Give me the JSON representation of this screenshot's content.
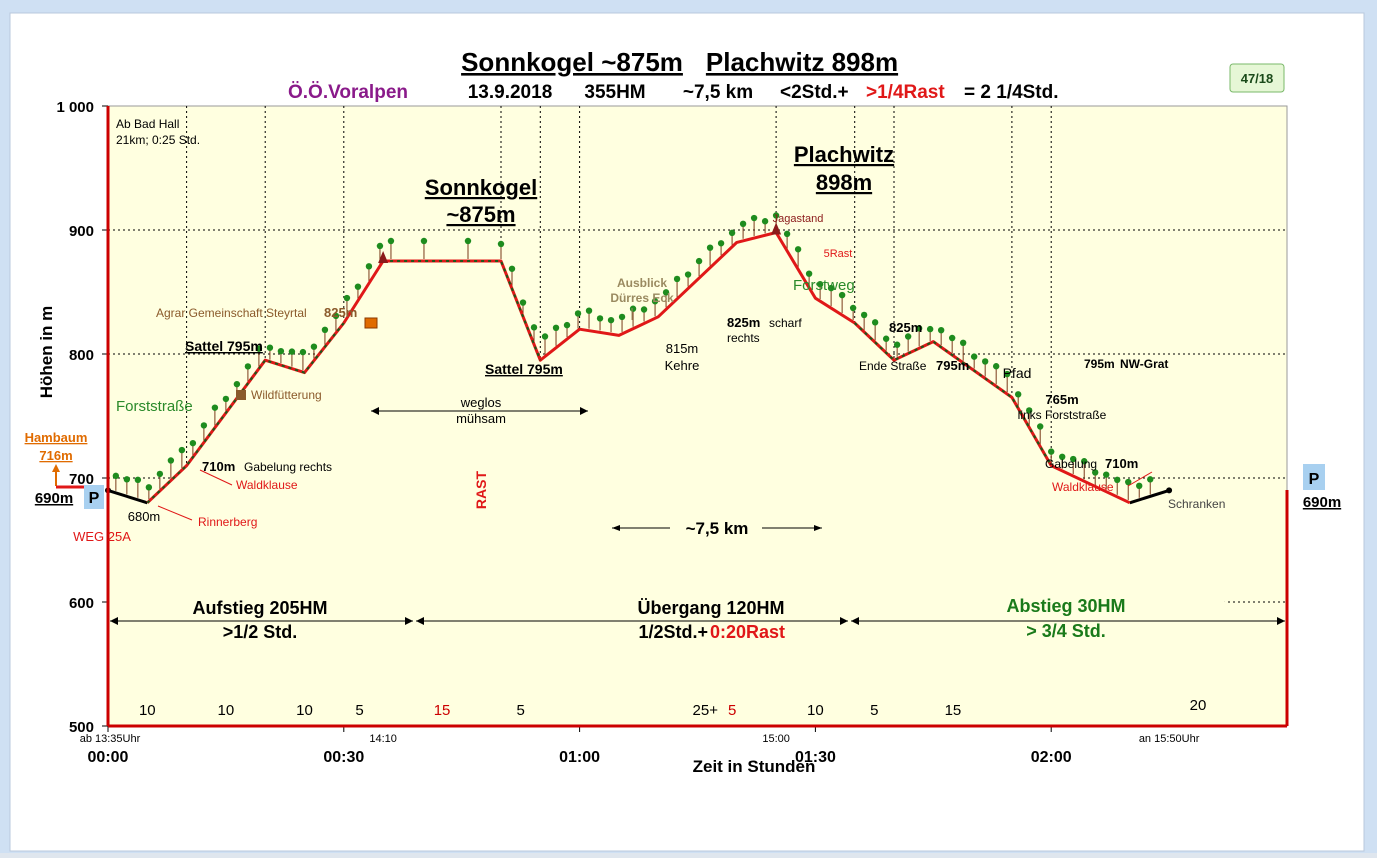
{
  "header": {
    "title_a": "Sonnkogel ~875m",
    "title_b": "Plachwitz 898m",
    "region": "Ö.Ö.Voralpen",
    "date": "13.9.2018",
    "hm": "355HM",
    "distance": "~7,5 km",
    "time_a": "<2Std.+",
    "time_rest": ">1/4Rast",
    "time_total": "= 2 1/4Std.",
    "badge": "47/18"
  },
  "chart_data": {
    "type": "area",
    "ylabel": "Höhen in m",
    "xlabel": "Zeit in Stunden",
    "ylim": [
      500,
      1000
    ],
    "xlim_min": [
      0,
      150
    ],
    "yticks": [
      "500",
      "600",
      "700",
      "800",
      "900",
      "1 000"
    ],
    "xticks": [
      {
        "min": 0,
        "label": "00:00"
      },
      {
        "min": 30,
        "label": "00:30"
      },
      {
        "min": 60,
        "label": "01:00"
      },
      {
        "min": 90,
        "label": "01:30"
      },
      {
        "min": 120,
        "label": "02:00"
      }
    ],
    "clock_labels": [
      {
        "min": 0,
        "label": "ab 13:35Uhr"
      },
      {
        "min": 35,
        "label": "14:10"
      },
      {
        "min": 85,
        "label": "15:00"
      },
      {
        "min": 135,
        "label": "an 15:50Uhr"
      }
    ],
    "grid": "dotted",
    "profile": [
      {
        "min": 0,
        "m": 690
      },
      {
        "min": 5,
        "m": 680
      },
      {
        "min": 10,
        "m": 710
      },
      {
        "min": 20,
        "m": 795
      },
      {
        "min": 25,
        "m": 785
      },
      {
        "min": 30,
        "m": 825
      },
      {
        "min": 35,
        "m": 875
      },
      {
        "min": 50,
        "m": 875
      },
      {
        "min": 55,
        "m": 795
      },
      {
        "min": 60,
        "m": 820
      },
      {
        "min": 65,
        "m": 815
      },
      {
        "min": 70,
        "m": 830
      },
      {
        "min": 80,
        "m": 890
      },
      {
        "min": 85,
        "m": 898
      },
      {
        "min": 90,
        "m": 845
      },
      {
        "min": 95,
        "m": 825
      },
      {
        "min": 100,
        "m": 795
      },
      {
        "min": 105,
        "m": 810
      },
      {
        "min": 115,
        "m": 765
      },
      {
        "min": 120,
        "m": 710
      },
      {
        "min": 130,
        "m": 680
      },
      {
        "min": 135,
        "m": 690
      }
    ],
    "separators_min": [
      10,
      20,
      30,
      50,
      55,
      60,
      85,
      95,
      100,
      115,
      120
    ],
    "segment_durations": [
      {
        "min": 5,
        "label": "10",
        "color": "#000000"
      },
      {
        "min": 15,
        "label": "10",
        "color": "#000000"
      },
      {
        "min": 25,
        "label": "10",
        "color": "#000000"
      },
      {
        "min": 32,
        "label": "5",
        "color": "#000000"
      },
      {
        "min": 42.5,
        "label": "15",
        "color": "#cc0000"
      },
      {
        "min": 52.5,
        "label": "5",
        "color": "#000000"
      },
      {
        "min": 90,
        "label": "10",
        "color": "#000000"
      },
      {
        "min": 97.5,
        "label": "5",
        "color": "#000000"
      },
      {
        "min": 107.5,
        "label": "15",
        "color": "#000000"
      }
    ],
    "seg_mixed": {
      "min": 72.5,
      "a": "25+",
      "b": "5"
    },
    "seg_last": {
      "min": 125,
      "label": "20"
    },
    "sections": [
      {
        "label": "Aufstieg 205HM",
        "sub": ">1/2 Std.",
        "color": "#000000"
      },
      {
        "label": "Übergang 120HM",
        "sub": "1/2Std.+",
        "sub_red": "0:20Rast",
        "color": "#000000"
      },
      {
        "label": "Abstieg 30HM",
        "sub": "> 3/4 Std.",
        "color": "#1a7a1a"
      }
    ],
    "annotations": {
      "start_info_1": "Ab Bad Hall",
      "start_info_2": "21km; 0:25 Std.",
      "peak1_name": "Sonnkogel",
      "peak1_h": "~875m",
      "peak2_name": "Plachwitz",
      "peak2_h": "898m",
      "hambaum": "Hambaum",
      "hambaum_h": "716m",
      "p_left": "690m",
      "p_right": "690m",
      "p_letter": "P",
      "weg": "WEG 25A",
      "m680": "680m",
      "rinnerberg": "Rinnerberg",
      "m710": "710m",
      "gabelung_rechts": "Gabelung rechts",
      "waldklause": "Waldklause",
      "forststrasse": "Forststraße",
      "wildfuetterung": "Wildfütterung",
      "sattel1": "Sattel 795m",
      "agrar": "Agrar Gemeinschaft Steyrtal",
      "agrar_h": "825m",
      "weglos": "weglos",
      "muehsam": "mühsam",
      "rast": "RAST",
      "sattel2": "Sattel 795m",
      "ausblick1": "Ausblick",
      "ausblick2": "Dürres Eck",
      "m815": "815m",
      "kehre": "Kehre",
      "m825a": "825m",
      "scharf": "scharf",
      "rechts": "rechts",
      "dist_mid": "~7,5 km",
      "jagastand": "Jagastand",
      "forstweg": "Forstweg",
      "rast5": "5Rast",
      "m825b": "825m",
      "ende_strasse": "Ende Straße",
      "ende_h": "795m",
      "pfad": "Pfad",
      "nw_h": "795m",
      "nw_grat": "NW-Grat",
      "m765": "765m",
      "links_forst": "links Forststraße",
      "gabelung2": "Gabelung",
      "gabelung2_h": "710m",
      "waldklause2": "Waldklause",
      "schranken": "Schranken"
    },
    "colors": {
      "fill": "#ffffe0",
      "line": "#e01818",
      "axis": "#cc0000",
      "tree": "#1e8c1e",
      "green_text": "#2a8a2a",
      "orange": "#e06b00",
      "purple": "#8a1a8a",
      "brown": "#8b5a2b"
    }
  }
}
